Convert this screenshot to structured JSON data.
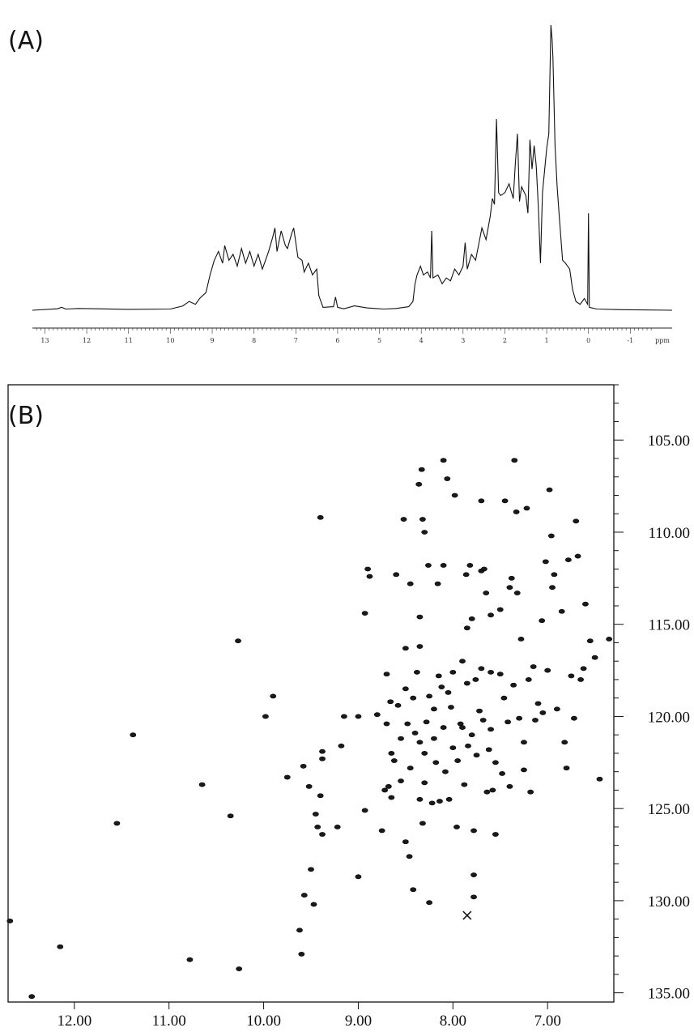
{
  "panel_a_label": "(A)",
  "panel_b_label": "(B)",
  "chart_data": [
    {
      "type": "line",
      "panel": "(A)",
      "title": "",
      "xlabel": "ppm",
      "ylabel": "",
      "x_reversed": true,
      "xlim": [
        13.3,
        -2.0
      ],
      "x_ticks": [
        "13",
        "12",
        "11",
        "10",
        "9",
        "8",
        "7",
        "6",
        "5",
        "4",
        "3",
        "2",
        "1",
        "0",
        "-1"
      ],
      "x_unit_label": "ppm",
      "grid": false,
      "series": [
        {
          "points": [
            [
              13.3,
              0
            ],
            [
              12.7,
              0.005
            ],
            [
              12.6,
              0.01
            ],
            [
              12.5,
              0.004
            ],
            [
              12.2,
              0.006
            ],
            [
              11.0,
              0.003
            ],
            [
              10.0,
              0.004
            ],
            [
              9.7,
              0.015
            ],
            [
              9.55,
              0.03
            ],
            [
              9.4,
              0.02
            ],
            [
              9.3,
              0.04
            ],
            [
              9.15,
              0.06
            ],
            [
              9.05,
              0.12
            ],
            [
              8.95,
              0.17
            ],
            [
              8.85,
              0.2
            ],
            [
              8.75,
              0.16
            ],
            [
              8.7,
              0.22
            ],
            [
              8.6,
              0.17
            ],
            [
              8.5,
              0.19
            ],
            [
              8.4,
              0.15
            ],
            [
              8.3,
              0.21
            ],
            [
              8.2,
              0.16
            ],
            [
              8.1,
              0.2
            ],
            [
              8.0,
              0.15
            ],
            [
              7.9,
              0.19
            ],
            [
              7.8,
              0.14
            ],
            [
              7.65,
              0.2
            ],
            [
              7.55,
              0.25
            ],
            [
              7.5,
              0.28
            ],
            [
              7.45,
              0.2
            ],
            [
              7.35,
              0.27
            ],
            [
              7.25,
              0.22
            ],
            [
              7.2,
              0.21
            ],
            [
              7.1,
              0.26
            ],
            [
              7.05,
              0.28
            ],
            [
              6.95,
              0.18
            ],
            [
              6.85,
              0.17
            ],
            [
              6.8,
              0.13
            ],
            [
              6.7,
              0.16
            ],
            [
              6.6,
              0.12
            ],
            [
              6.5,
              0.14
            ],
            [
              6.45,
              0.05
            ],
            [
              6.35,
              0.01
            ],
            [
              6.1,
              0.012
            ],
            [
              6.05,
              0.045
            ],
            [
              6.0,
              0.01
            ],
            [
              5.85,
              0.005
            ],
            [
              5.6,
              0.015
            ],
            [
              5.3,
              0.008
            ],
            [
              5.1,
              0.006
            ],
            [
              4.9,
              0.004
            ],
            [
              4.6,
              0.006
            ],
            [
              4.3,
              0.012
            ],
            [
              4.2,
              0.03
            ],
            [
              4.15,
              0.09
            ],
            [
              4.1,
              0.12
            ],
            [
              4.02,
              0.15
            ],
            [
              3.95,
              0.12
            ],
            [
              3.85,
              0.13
            ],
            [
              3.78,
              0.11
            ],
            [
              3.75,
              0.27
            ],
            [
              3.72,
              0.11
            ],
            [
              3.6,
              0.12
            ],
            [
              3.5,
              0.09
            ],
            [
              3.4,
              0.11
            ],
            [
              3.3,
              0.1
            ],
            [
              3.2,
              0.14
            ],
            [
              3.1,
              0.12
            ],
            [
              3.0,
              0.15
            ],
            [
              2.95,
              0.23
            ],
            [
              2.9,
              0.14
            ],
            [
              2.8,
              0.19
            ],
            [
              2.7,
              0.17
            ],
            [
              2.55,
              0.28
            ],
            [
              2.45,
              0.24
            ],
            [
              2.35,
              0.32
            ],
            [
              2.3,
              0.38
            ],
            [
              2.25,
              0.36
            ],
            [
              2.2,
              0.65
            ],
            [
              2.15,
              0.4
            ],
            [
              2.1,
              0.39
            ],
            [
              2.0,
              0.4
            ],
            [
              1.9,
              0.43
            ],
            [
              1.8,
              0.38
            ],
            [
              1.75,
              0.5
            ],
            [
              1.7,
              0.6
            ],
            [
              1.65,
              0.37
            ],
            [
              1.6,
              0.42
            ],
            [
              1.5,
              0.39
            ],
            [
              1.45,
              0.33
            ],
            [
              1.4,
              0.58
            ],
            [
              1.35,
              0.48
            ],
            [
              1.3,
              0.56
            ],
            [
              1.25,
              0.49
            ],
            [
              1.2,
              0.35
            ],
            [
              1.15,
              0.16
            ],
            [
              1.1,
              0.4
            ],
            [
              1.0,
              0.55
            ],
            [
              0.95,
              0.6
            ],
            [
              0.9,
              0.97
            ],
            [
              0.87,
              0.92
            ],
            [
              0.85,
              0.86
            ],
            [
              0.8,
              0.56
            ],
            [
              0.75,
              0.42
            ],
            [
              0.7,
              0.32
            ],
            [
              0.62,
              0.17
            ],
            [
              0.55,
              0.16
            ],
            [
              0.5,
              0.15
            ],
            [
              0.45,
              0.14
            ],
            [
              0.38,
              0.07
            ],
            [
              0.3,
              0.03
            ],
            [
              0.2,
              0.02
            ],
            [
              0.1,
              0.04
            ],
            [
              0.02,
              0.02
            ],
            [
              0.0,
              0.33
            ],
            [
              -0.02,
              0.01
            ],
            [
              -0.2,
              0.004
            ],
            [
              -0.8,
              0.002
            ],
            [
              -2.0,
              0
            ]
          ]
        }
      ]
    },
    {
      "type": "scatter",
      "panel": "(B)",
      "title": "",
      "xlabel": "",
      "ylabel": "",
      "x_reversed": true,
      "y_reversed": true,
      "xlim": [
        12.7,
        6.3
      ],
      "ylim": [
        102.0,
        135.5
      ],
      "x_ticks": [
        "12.00",
        "11.00",
        "10.00",
        "9.00",
        "8.00",
        "7.00"
      ],
      "y_ticks": [
        "105.00",
        "110.00",
        "115.00",
        "120.00",
        "125.00",
        "130.00",
        "135.00"
      ],
      "y_axis_side": "right",
      "grid": false,
      "peaks": [
        [
          12.45,
          135.2
        ],
        [
          12.15,
          132.5
        ],
        [
          12.68,
          131.1
        ],
        [
          11.55,
          125.8
        ],
        [
          11.38,
          121.0
        ],
        [
          10.78,
          133.2
        ],
        [
          10.65,
          123.7
        ],
        [
          10.35,
          125.4
        ],
        [
          10.27,
          115.9
        ],
        [
          10.26,
          133.7
        ],
        [
          9.98,
          120.0
        ],
        [
          9.9,
          118.9
        ],
        [
          9.75,
          123.3
        ],
        [
          9.62,
          131.6
        ],
        [
          9.6,
          132.9
        ],
        [
          9.58,
          122.7
        ],
        [
          9.57,
          129.7
        ],
        [
          9.52,
          123.8
        ],
        [
          9.5,
          128.3
        ],
        [
          9.47,
          130.2
        ],
        [
          9.45,
          125.3
        ],
        [
          9.43,
          126.0
        ],
        [
          9.4,
          109.2
        ],
        [
          9.4,
          124.3
        ],
        [
          9.38,
          126.4
        ],
        [
          9.38,
          121.9
        ],
        [
          9.38,
          122.3
        ],
        [
          9.22,
          126.0
        ],
        [
          9.18,
          121.6
        ],
        [
          9.15,
          120.0
        ],
        [
          9.0,
          120.0
        ],
        [
          9.0,
          128.7
        ],
        [
          8.93,
          125.1
        ],
        [
          8.93,
          114.4
        ],
        [
          8.9,
          112.0
        ],
        [
          8.88,
          112.4
        ],
        [
          8.8,
          119.9
        ],
        [
          8.75,
          126.2
        ],
        [
          8.72,
          124.0
        ],
        [
          8.7,
          120.4
        ],
        [
          8.7,
          117.7
        ],
        [
          8.68,
          123.8
        ],
        [
          8.66,
          119.2
        ],
        [
          8.65,
          122.0
        ],
        [
          8.65,
          124.4
        ],
        [
          8.62,
          122.4
        ],
        [
          8.6,
          112.3
        ],
        [
          8.58,
          119.4
        ],
        [
          8.55,
          121.2
        ],
        [
          8.55,
          123.5
        ],
        [
          8.52,
          109.3
        ],
        [
          8.5,
          118.5
        ],
        [
          8.5,
          116.3
        ],
        [
          8.5,
          126.8
        ],
        [
          8.48,
          120.4
        ],
        [
          8.46,
          127.6
        ],
        [
          8.45,
          112.8
        ],
        [
          8.45,
          122.8
        ],
        [
          8.42,
          129.4
        ],
        [
          8.42,
          119.0
        ],
        [
          8.4,
          120.9
        ],
        [
          8.38,
          117.6
        ],
        [
          8.36,
          107.4
        ],
        [
          8.35,
          114.6
        ],
        [
          8.35,
          116.2
        ],
        [
          8.35,
          121.4
        ],
        [
          8.35,
          124.5
        ],
        [
          8.33,
          106.6
        ],
        [
          8.32,
          109.3
        ],
        [
          8.32,
          125.8
        ],
        [
          8.3,
          110.0
        ],
        [
          8.3,
          122.0
        ],
        [
          8.3,
          123.6
        ],
        [
          8.28,
          120.3
        ],
        [
          8.26,
          111.8
        ],
        [
          8.25,
          118.9
        ],
        [
          8.25,
          130.1
        ],
        [
          8.22,
          124.7
        ],
        [
          8.2,
          119.6
        ],
        [
          8.2,
          121.2
        ],
        [
          8.18,
          122.5
        ],
        [
          8.16,
          112.8
        ],
        [
          8.15,
          117.8
        ],
        [
          8.14,
          124.6
        ],
        [
          8.12,
          118.4
        ],
        [
          8.1,
          106.1
        ],
        [
          8.1,
          111.8
        ],
        [
          8.1,
          120.6
        ],
        [
          8.08,
          123.0
        ],
        [
          8.06,
          107.1
        ],
        [
          8.05,
          118.7
        ],
        [
          8.04,
          124.5
        ],
        [
          8.02,
          119.5
        ],
        [
          8.0,
          117.6
        ],
        [
          8.0,
          121.7
        ],
        [
          7.98,
          108.0
        ],
        [
          7.96,
          126.0
        ],
        [
          7.95,
          122.4
        ],
        [
          7.92,
          120.4
        ],
        [
          7.9,
          117.0
        ],
        [
          7.9,
          120.6
        ],
        [
          7.88,
          123.7
        ],
        [
          7.86,
          112.3
        ],
        [
          7.85,
          115.2
        ],
        [
          7.85,
          118.2
        ],
        [
          7.84,
          121.6
        ],
        [
          7.82,
          111.8
        ],
        [
          7.8,
          114.7
        ],
        [
          7.8,
          121.0
        ],
        [
          7.78,
          126.2
        ],
        [
          7.78,
          128.6
        ],
        [
          7.78,
          129.8
        ],
        [
          7.76,
          118.0
        ],
        [
          7.75,
          122.1
        ],
        [
          7.72,
          119.7
        ],
        [
          7.7,
          108.3
        ],
        [
          7.7,
          112.1
        ],
        [
          7.7,
          117.4
        ],
        [
          7.68,
          120.2
        ],
        [
          7.67,
          112.0
        ],
        [
          7.65,
          113.3
        ],
        [
          7.64,
          124.1
        ],
        [
          7.62,
          121.8
        ],
        [
          7.6,
          114.5
        ],
        [
          7.6,
          117.6
        ],
        [
          7.6,
          120.7
        ],
        [
          7.58,
          124.0
        ],
        [
          7.55,
          122.5
        ],
        [
          7.55,
          126.4
        ],
        [
          7.5,
          117.7
        ],
        [
          7.5,
          114.2
        ],
        [
          7.48,
          123.1
        ],
        [
          7.46,
          119.0
        ],
        [
          7.45,
          108.3
        ],
        [
          7.42,
          120.3
        ],
        [
          7.4,
          113.0
        ],
        [
          7.4,
          123.8
        ],
        [
          7.38,
          112.5
        ],
        [
          7.36,
          118.3
        ],
        [
          7.35,
          106.1
        ],
        [
          7.33,
          108.9
        ],
        [
          7.32,
          113.3
        ],
        [
          7.3,
          120.1
        ],
        [
          7.28,
          115.8
        ],
        [
          7.25,
          121.4
        ],
        [
          7.25,
          122.9
        ],
        [
          7.22,
          108.7
        ],
        [
          7.2,
          118.0
        ],
        [
          7.18,
          124.1
        ],
        [
          7.15,
          117.3
        ],
        [
          7.13,
          120.2
        ],
        [
          7.1,
          119.3
        ],
        [
          7.06,
          114.8
        ],
        [
          7.05,
          119.8
        ],
        [
          7.02,
          111.6
        ],
        [
          7.0,
          117.5
        ],
        [
          6.98,
          107.7
        ],
        [
          6.96,
          110.2
        ],
        [
          6.95,
          113.0
        ],
        [
          6.93,
          112.3
        ],
        [
          6.9,
          119.6
        ],
        [
          6.85,
          114.3
        ],
        [
          6.82,
          121.4
        ],
        [
          6.8,
          122.8
        ],
        [
          6.78,
          111.5
        ],
        [
          6.75,
          117.8
        ],
        [
          6.72,
          120.1
        ],
        [
          6.7,
          109.4
        ],
        [
          6.65,
          118.0
        ],
        [
          6.62,
          117.4
        ],
        [
          6.55,
          115.9
        ],
        [
          6.5,
          116.8
        ],
        [
          6.45,
          123.4
        ],
        [
          6.35,
          115.8
        ],
        [
          6.68,
          111.3
        ],
        [
          6.6,
          113.9
        ],
        [
          7.85,
          130.8
        ]
      ]
    }
  ]
}
